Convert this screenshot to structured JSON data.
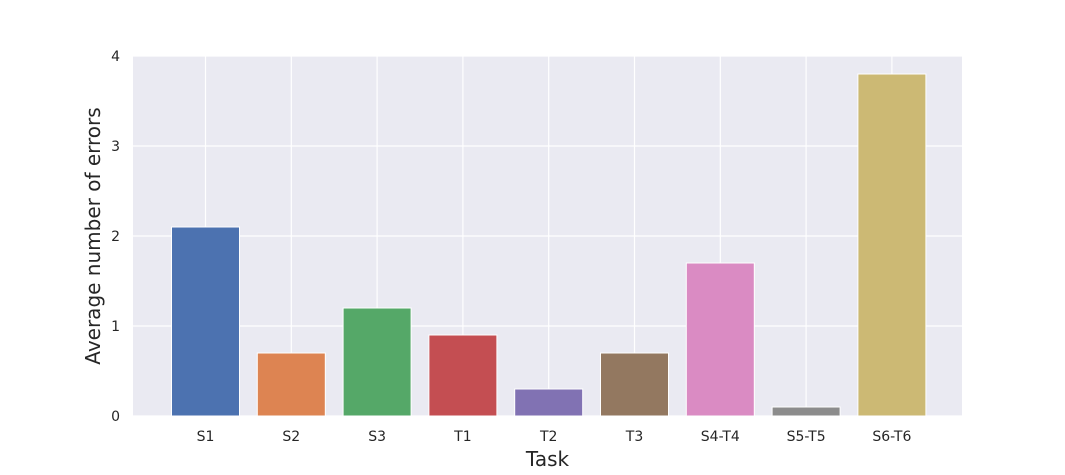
{
  "chart_data": {
    "type": "bar",
    "title": "",
    "xlabel": "Task",
    "ylabel": "Average number of errors",
    "categories": [
      "S1",
      "S2",
      "S3",
      "T1",
      "T2",
      "T3",
      "S4-T4",
      "S5-T5",
      "S6-T6"
    ],
    "values": [
      2.1,
      0.7,
      1.2,
      0.9,
      0.3,
      0.7,
      1.7,
      0.1,
      3.8
    ],
    "colors": [
      "#4c72b0",
      "#dd8452",
      "#55a868",
      "#c44e52",
      "#8172b3",
      "#937860",
      "#da8bc3",
      "#8c8c8c",
      "#ccb974"
    ],
    "ylim": [
      0,
      4
    ],
    "yticks": [
      0,
      1,
      2,
      3,
      4
    ],
    "ytick_labels": [
      "0",
      "1",
      "2",
      "3",
      "4"
    ],
    "grid": true,
    "style": {
      "plot_background": "#eaeaf2",
      "grid_color": "#ffffff"
    }
  }
}
